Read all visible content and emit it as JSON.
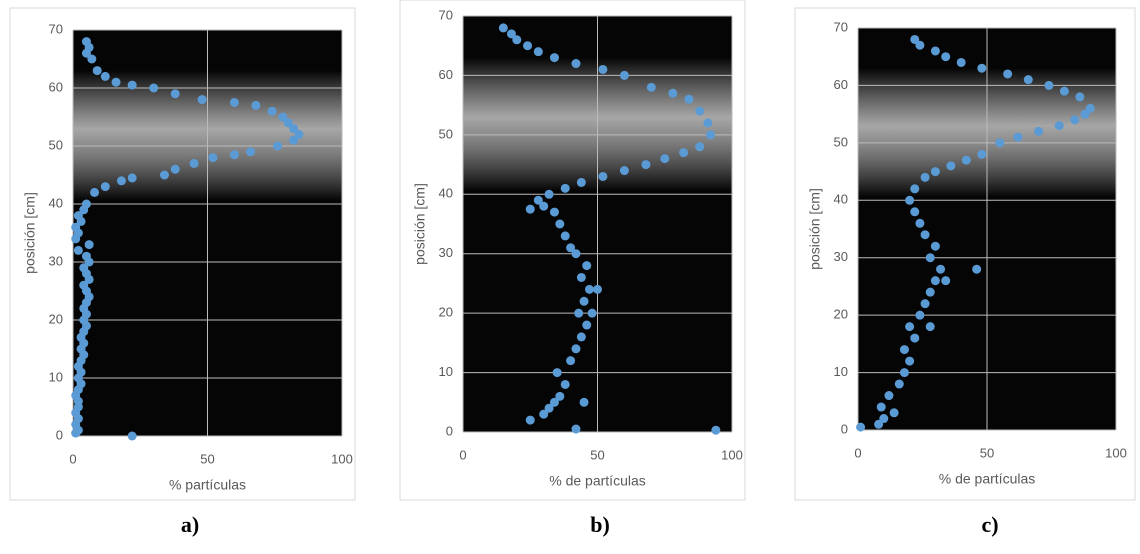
{
  "chart_data": [
    {
      "type": "scatter",
      "ylabel": "posición [cm]",
      "xlabel": "% partículas",
      "caption": "a)",
      "color": "#5b9bd5",
      "xlim": [
        0,
        100
      ],
      "ylim": [
        0,
        70
      ],
      "xticks": [
        0,
        50,
        100
      ],
      "yticks": [
        0,
        10,
        20,
        30,
        40,
        50,
        60,
        70
      ],
      "grid": true,
      "x": [
        1,
        2,
        1,
        2,
        1,
        2,
        2,
        1,
        2,
        3,
        2,
        3,
        2,
        3,
        4,
        3,
        4,
        3,
        4,
        5,
        4,
        5,
        4,
        5,
        6,
        5,
        4,
        6,
        5,
        4,
        6,
        5,
        2,
        6,
        1,
        2,
        1,
        3,
        2,
        4,
        5,
        8,
        12,
        18,
        22,
        34,
        38,
        45,
        52,
        60,
        66,
        76,
        82,
        84,
        82,
        80,
        78,
        74,
        68,
        60,
        48,
        38,
        30,
        22,
        16,
        12,
        9,
        7,
        5,
        6,
        5,
        22
      ],
      "values": [
        0.5,
        1,
        2,
        3,
        4,
        5,
        6,
        7,
        8,
        9,
        10,
        11,
        12,
        13,
        14,
        15,
        16,
        17,
        18,
        19,
        20,
        21,
        22,
        23,
        24,
        25,
        26,
        27,
        28,
        29,
        30,
        31,
        32,
        33,
        34,
        35,
        36,
        37,
        38,
        39,
        40,
        42,
        43,
        44,
        44.5,
        45,
        46,
        47,
        48,
        48.5,
        49,
        50,
        51,
        52,
        53,
        54,
        55,
        56,
        57,
        57.5,
        58,
        59,
        60,
        60.5,
        61,
        62,
        63,
        65,
        66,
        67,
        68,
        0
      ]
    },
    {
      "type": "scatter",
      "ylabel": "posición [cm]",
      "xlabel": "% de partículas",
      "caption": "b)",
      "color": "#5b9bd5",
      "xlim": [
        0,
        100
      ],
      "ylim": [
        0,
        70
      ],
      "xticks": [
        0,
        50,
        100
      ],
      "yticks": [
        0,
        10,
        20,
        30,
        40,
        50,
        60,
        70
      ],
      "grid": true,
      "x": [
        25,
        30,
        32,
        34,
        36,
        38,
        35,
        40,
        42,
        44,
        46,
        43,
        45,
        47,
        44,
        46,
        42,
        40,
        38,
        36,
        34,
        30,
        25,
        28,
        32,
        38,
        44,
        52,
        60,
        68,
        75,
        82,
        88,
        92,
        91,
        88,
        84,
        78,
        70,
        60,
        52,
        42,
        34,
        28,
        24,
        20,
        18,
        15,
        94,
        42,
        45,
        48,
        50
      ],
      "values": [
        2,
        3,
        4,
        5,
        6,
        8,
        10,
        12,
        14,
        16,
        18,
        20,
        22,
        24,
        26,
        28,
        30,
        31,
        33,
        35,
        37,
        38,
        37.5,
        39,
        40,
        41,
        42,
        43,
        44,
        45,
        46,
        47,
        48,
        50,
        52,
        54,
        56,
        57,
        58,
        60,
        61,
        62,
        63,
        64,
        65,
        66,
        67,
        68,
        0.3,
        0.5,
        5,
        20,
        24
      ]
    },
    {
      "type": "scatter",
      "ylabel": "posición [cm]",
      "xlabel": "% de partículas",
      "caption": "c)",
      "color": "#5b9bd5",
      "xlim": [
        0,
        100
      ],
      "ylim": [
        0,
        70
      ],
      "xticks": [
        0,
        50,
        100
      ],
      "yticks": [
        0,
        10,
        20,
        30,
        40,
        50,
        60,
        70
      ],
      "grid": true,
      "x": [
        1,
        8,
        10,
        9,
        12,
        16,
        18,
        20,
        18,
        22,
        20,
        24,
        26,
        28,
        30,
        32,
        28,
        30,
        26,
        24,
        22,
        20,
        22,
        26,
        30,
        36,
        42,
        48,
        55,
        62,
        70,
        78,
        84,
        88,
        90,
        86,
        80,
        74,
        66,
        58,
        48,
        40,
        34,
        30,
        24,
        22,
        46,
        34,
        14,
        28
      ],
      "values": [
        0.5,
        1,
        2,
        4,
        6,
        8,
        10,
        12,
        14,
        16,
        18,
        20,
        22,
        24,
        26,
        28,
        30,
        32,
        34,
        36,
        38,
        40,
        42,
        44,
        45,
        46,
        47,
        48,
        50,
        51,
        52,
        53,
        54,
        55,
        56,
        58,
        59,
        60,
        61,
        62,
        63,
        64,
        65,
        66,
        67,
        68,
        28,
        26,
        3,
        18
      ]
    }
  ]
}
